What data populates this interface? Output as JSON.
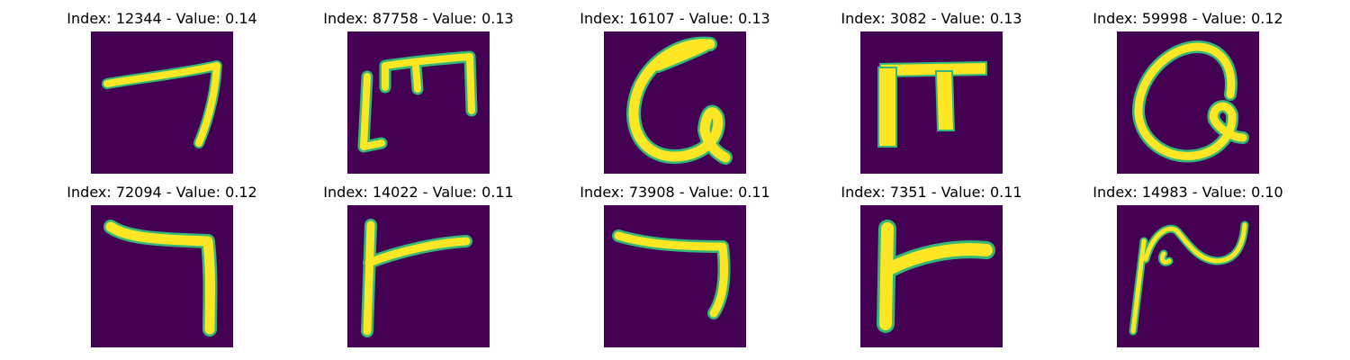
{
  "panels": [
    {
      "title": "Index: 12344 - Value: 0.14"
    },
    {
      "title": "Index: 87758 - Value: 0.13"
    },
    {
      "title": "Index: 16107 - Value: 0.13"
    },
    {
      "title": "Index: 3082 - Value: 0.13"
    },
    {
      "title": "Index: 59998 - Value: 0.12"
    },
    {
      "title": "Index: 72094 - Value: 0.12"
    },
    {
      "title": "Index: 14022 - Value: 0.11"
    },
    {
      "title": "Index: 73908 - Value: 0.11"
    },
    {
      "title": "Index: 7351 - Value: 0.11"
    },
    {
      "title": "Index: 14983 - Value: 0.10"
    }
  ],
  "colors": {
    "background": "#440154",
    "stroke": "#fde725",
    "edge": "#35b779"
  }
}
